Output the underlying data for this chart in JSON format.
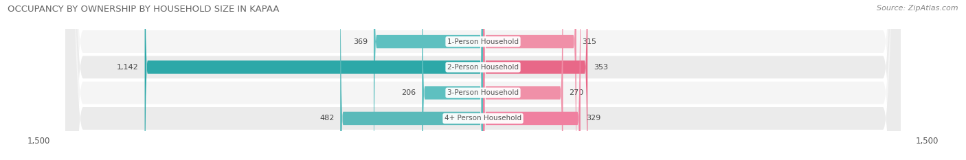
{
  "title": "OCCUPANCY BY OWNERSHIP BY HOUSEHOLD SIZE IN KAPAA",
  "source": "Source: ZipAtlas.com",
  "categories": [
    "1-Person Household",
    "2-Person Household",
    "3-Person Household",
    "4+ Person Household"
  ],
  "owner_values": [
    369,
    1142,
    206,
    482
  ],
  "renter_values": [
    315,
    353,
    270,
    329
  ],
  "owner_color": "#4cb8b8",
  "renter_color": "#f07898",
  "owner_color_row2": "#3aadad",
  "renter_color_row2": "#e86080",
  "xlim": 1500,
  "title_fontsize": 9.5,
  "source_fontsize": 8,
  "tick_fontsize": 8.5,
  "category_fontsize": 7.5,
  "value_fontsize": 8,
  "row_bg_light": "#f2f2f2",
  "row_bg_dark": "#e8e8e8",
  "bar_row_colors": [
    "#f0f0f0",
    "#e4e4e4",
    "#f0f0f0",
    "#e4e4e4"
  ]
}
